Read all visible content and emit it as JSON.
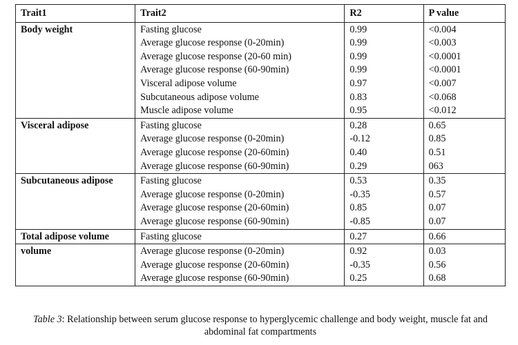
{
  "table": {
    "headers": [
      "Trait1",
      "Trait2",
      "R2",
      "P value"
    ],
    "groups": [
      {
        "trait1": "Body weight",
        "trait2": [
          "Fasting glucose",
          "Average glucose response  (0-20min)",
          "Average glucose response (20-60 min)",
          "Average glucose response (60-90min)",
          "Visceral adipose volume",
          "Subcutaneous adipose volume",
          "Muscle adipose volume"
        ],
        "r2": [
          "0.99",
          "0.99",
          "0.99",
          "0.99",
          "0.97",
          "0.83",
          "0.95"
        ],
        "p": [
          "<0.004",
          "<0.003",
          "<0.0001",
          "<0.0001",
          "<0.007",
          "<0.068",
          "<0.012"
        ]
      },
      {
        "trait1": "Visceral adipose",
        "trait2": [
          "Fasting glucose",
          "Average glucose response (0-20min)",
          "Average glucose response (20-60min)",
          "Average glucose response (60-90min)"
        ],
        "r2": [
          "0.28",
          "-0.12",
          "0.40",
          "0.29"
        ],
        "p": [
          "0.65",
          "0.85",
          "0.51",
          "063"
        ]
      },
      {
        "trait1": "Subcutaneous adipose",
        "trait2": [
          "Fasting glucose",
          "Average glucose response (0-20min)",
          "Average glucose response (20-60min)",
          "Average glucose response (60-90min)"
        ],
        "r2": [
          "0.53",
          "-0.35",
          "0.85",
          "-0.85"
        ],
        "p": [
          "0.35",
          "0.57",
          "0.07",
          "0.07"
        ]
      },
      {
        "trait1": "Total adipose volume",
        "trait2": [
          "Fasting glucose"
        ],
        "r2": [
          "0.27"
        ],
        "p": [
          "0.66"
        ]
      },
      {
        "trait1": "volume",
        "trait2": [
          "Average glucose response (0-20min)",
          "Average glucose response (20-60min)",
          "Average glucose response (60-90min)"
        ],
        "r2": [
          "0.92",
          "-0.35",
          "0.25"
        ],
        "p": [
          "0.03",
          "0.56",
          "0.68"
        ]
      }
    ]
  },
  "caption": {
    "label": "Table 3",
    "text": ": Relationship between serum glucose response to hyperglycemic challenge and body weight, muscle fat and abdominal fat compartments"
  }
}
